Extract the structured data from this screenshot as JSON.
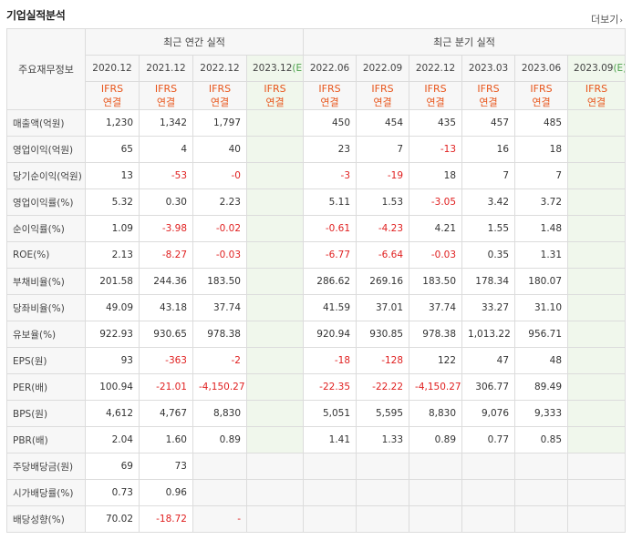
{
  "header": {
    "title": "기업실적분석",
    "more_label": "더보기"
  },
  "table": {
    "corner_label": "주요재무정보",
    "group_headers": [
      "최근 연간 실적",
      "최근 분기 실적"
    ],
    "periods": [
      "2020.12",
      "2021.12",
      "2022.12",
      "2023.12",
      "2022.06",
      "2022.09",
      "2022.12",
      "2023.03",
      "2023.06",
      "2023.09"
    ],
    "estimate_suffix": "(E)",
    "accounting_top": "IFRS",
    "accounting_bottom": "연결",
    "rows": [
      {
        "label": "매출액(억원)",
        "values": [
          "1,230",
          "1,342",
          "1,797",
          "",
          "450",
          "454",
          "435",
          "457",
          "485",
          ""
        ]
      },
      {
        "label": "영업이익(억원)",
        "values": [
          "65",
          "4",
          "40",
          "",
          "23",
          "7",
          "-13",
          "16",
          "18",
          ""
        ]
      },
      {
        "label": "당기순이익(억원)",
        "values": [
          "13",
          "-53",
          "-0",
          "",
          "-3",
          "-19",
          "18",
          "7",
          "7",
          ""
        ]
      },
      {
        "label": "영업이익률(%)",
        "values": [
          "5.32",
          "0.30",
          "2.23",
          "",
          "5.11",
          "1.53",
          "-3.05",
          "3.42",
          "3.72",
          ""
        ]
      },
      {
        "label": "순이익률(%)",
        "values": [
          "1.09",
          "-3.98",
          "-0.02",
          "",
          "-0.61",
          "-4.23",
          "4.21",
          "1.55",
          "1.48",
          ""
        ]
      },
      {
        "label": "ROE(%)",
        "values": [
          "2.13",
          "-8.27",
          "-0.03",
          "",
          "-6.77",
          "-6.64",
          "-0.03",
          "0.35",
          "1.31",
          ""
        ]
      },
      {
        "label": "부채비율(%)",
        "values": [
          "201.58",
          "244.36",
          "183.50",
          "",
          "286.62",
          "269.16",
          "183.50",
          "178.34",
          "180.07",
          ""
        ]
      },
      {
        "label": "당좌비율(%)",
        "values": [
          "49.09",
          "43.18",
          "37.74",
          "",
          "41.59",
          "37.01",
          "37.74",
          "33.27",
          "31.10",
          ""
        ]
      },
      {
        "label": "유보율(%)",
        "values": [
          "922.93",
          "930.65",
          "978.38",
          "",
          "920.94",
          "930.85",
          "978.38",
          "1,013.22",
          "956.71",
          ""
        ]
      },
      {
        "label": "EPS(원)",
        "values": [
          "93",
          "-363",
          "-2",
          "",
          "-18",
          "-128",
          "122",
          "47",
          "48",
          ""
        ]
      },
      {
        "label": "PER(배)",
        "values": [
          "100.94",
          "-21.01",
          "-4,150.27",
          "",
          "-22.35",
          "-22.22",
          "-4,150.27",
          "306.77",
          "89.49",
          ""
        ]
      },
      {
        "label": "BPS(원)",
        "values": [
          "4,612",
          "4,767",
          "8,830",
          "",
          "5,051",
          "5,595",
          "8,830",
          "9,076",
          "9,333",
          ""
        ]
      },
      {
        "label": "PBR(배)",
        "values": [
          "2.04",
          "1.60",
          "0.89",
          "",
          "1.41",
          "1.33",
          "0.89",
          "0.77",
          "0.85",
          ""
        ]
      },
      {
        "label": "주당배당금(원)",
        "values": [
          "69",
          "73",
          "",
          "",
          "",
          "",
          "",
          "",
          "",
          ""
        ]
      },
      {
        "label": "시가배당률(%)",
        "values": [
          "0.73",
          "0.96",
          "",
          "",
          "",
          "",
          "",
          "",
          "",
          ""
        ]
      },
      {
        "label": "배당성향(%)",
        "values": [
          "70.02",
          "-18.72",
          "-",
          "",
          "",
          "",
          "",
          "",
          "",
          ""
        ]
      }
    ]
  },
  "colors": {
    "negative": "#e02020",
    "accounting": "#e8561c",
    "estimate_bg": "#f0f7ec",
    "estimate_label": "#4aa14a",
    "header_bg": "#f7f7f7"
  }
}
